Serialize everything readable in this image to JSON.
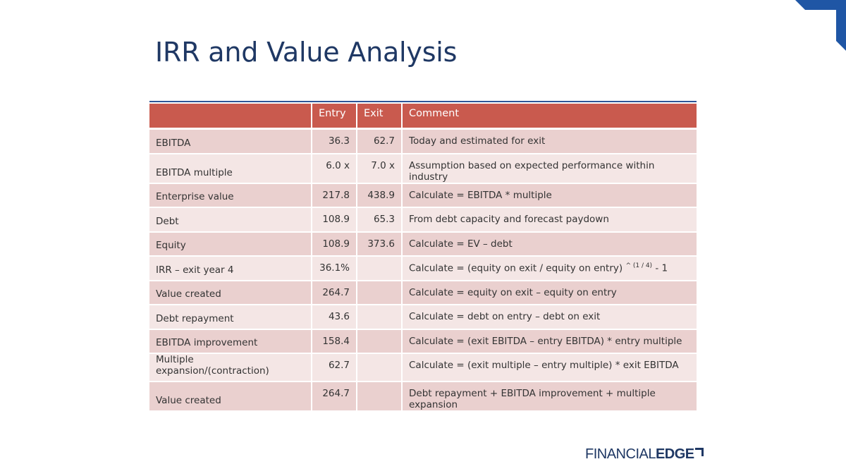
{
  "slide": {
    "title": "IRR and Value Analysis"
  },
  "colors": {
    "title": "#1f3864",
    "header_bg": "#c95a4e",
    "row_dark": "#ead0cf",
    "row_light": "#f4e6e5",
    "accent_blue": "#2e5597"
  },
  "table": {
    "headers": [
      "",
      "Entry",
      "Exit",
      "Comment"
    ],
    "rows": [
      {
        "label": "EBITDA",
        "entry": "36.3",
        "exit": "62.7",
        "comment": "Today and estimated for exit"
      },
      {
        "label": "EBITDA multiple",
        "entry": "6.0 x",
        "exit": "7.0 x",
        "comment": "Assumption based on expected performance within industry"
      },
      {
        "label": "Enterprise value",
        "entry": "217.8",
        "exit": "438.9",
        "comment": "Calculate  = EBITDA * multiple"
      },
      {
        "label": "Debt",
        "entry": "108.9",
        "exit": "65.3",
        "comment": "From debt capacity and forecast paydown"
      },
      {
        "label": "Equity",
        "entry": "108.9",
        "exit": "373.6",
        "comment": "Calculate = EV – debt"
      },
      {
        "label": "IRR – exit year 4",
        "entry": "36.1%",
        "exit": "",
        "comment": "Calculate = (equity on exit / equity on entry)",
        "comment_sup": "^ (1 / 4)",
        "comment_tail": " - 1"
      },
      {
        "label": "Value created",
        "entry": "264.7",
        "exit": "",
        "comment": "Calculate = equity on exit – equity on entry"
      },
      {
        "label": "Debt repayment",
        "entry": "43.6",
        "exit": "",
        "comment": "Calculate = debt on entry – debt on exit"
      },
      {
        "label": "EBITDA improvement",
        "entry": "158.4",
        "exit": "",
        "comment": "Calculate = (exit EBITDA – entry EBITDA) * entry multiple"
      },
      {
        "label": "Multiple expansion/(contraction)",
        "entry": "62.7",
        "exit": "",
        "comment": "Calculate = (exit multiple – entry multiple) * exit EBITDA"
      },
      {
        "label": "Value created",
        "entry": "264.7",
        "exit": "",
        "comment": "Debt repayment + EBITDA improvement + multiple expansion"
      }
    ]
  },
  "logo": {
    "part1": "FINANCIAL",
    "part2": "EDGE"
  }
}
